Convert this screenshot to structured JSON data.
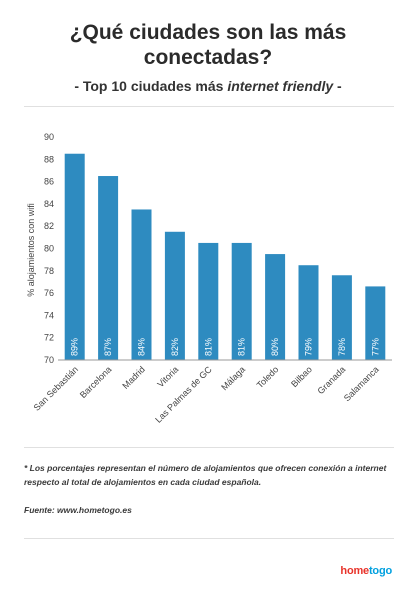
{
  "header": {
    "title_line1": "¿Qué ciudades son las más",
    "title_line2": "conectadas?",
    "subtitle_prefix": "- Top 10 ciudades más ",
    "subtitle_emph": "internet friendly",
    "subtitle_suffix": " -"
  },
  "chart_data": {
    "type": "bar",
    "categories": [
      "San Sebastián",
      "Barcelona",
      "Madrid",
      "Vitoria",
      "Las Palmas de GC",
      "Málaga",
      "Toledo",
      "Bilbao",
      "Granada",
      "Salamanca"
    ],
    "values": [
      88.5,
      86.5,
      83.5,
      81.5,
      80.5,
      80.5,
      79.5,
      78.5,
      77.6,
      76.6
    ],
    "data_labels": [
      "89%",
      "87%",
      "84%",
      "82%",
      "81%",
      "81%",
      "80%",
      "79%",
      "78%",
      "77%"
    ],
    "ylabel": "% alojamientos con wifi",
    "ylim": [
      70,
      90
    ],
    "yticks": [
      70,
      72,
      74,
      76,
      78,
      80,
      82,
      84,
      86,
      88,
      90
    ],
    "grid": false,
    "bar_color": "#2e8bc0"
  },
  "footer": {
    "footnote_line1": "* Los porcentajes representan el número de alojamientos que ofrecen conexión a internet",
    "footnote_line2": "respecto al total de alojamientos en cada ciudad española.",
    "source": "Fuente: www.hometogo.es",
    "brand_part1": "home",
    "brand_part2": "togo"
  }
}
